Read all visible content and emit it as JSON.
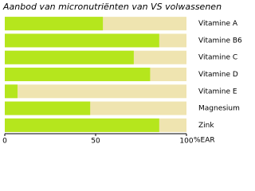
{
  "chart_data": {
    "type": "barh",
    "title": "Aanbod van micronutriënten van VS volwassenen",
    "categories": [
      "Vitamine A",
      "Vitamine B6",
      "Vitamine C",
      "Vitamine D",
      "Vitamine E",
      "Magnesium",
      "Zink"
    ],
    "values": [
      54,
      85,
      71,
      80,
      7,
      47,
      85
    ],
    "color": "#b5e61d",
    "track_color": "#efe4b0",
    "xlabel": "%EAR",
    "xlim": [
      0,
      100
    ],
    "xticks": [
      0,
      50,
      100
    ]
  }
}
